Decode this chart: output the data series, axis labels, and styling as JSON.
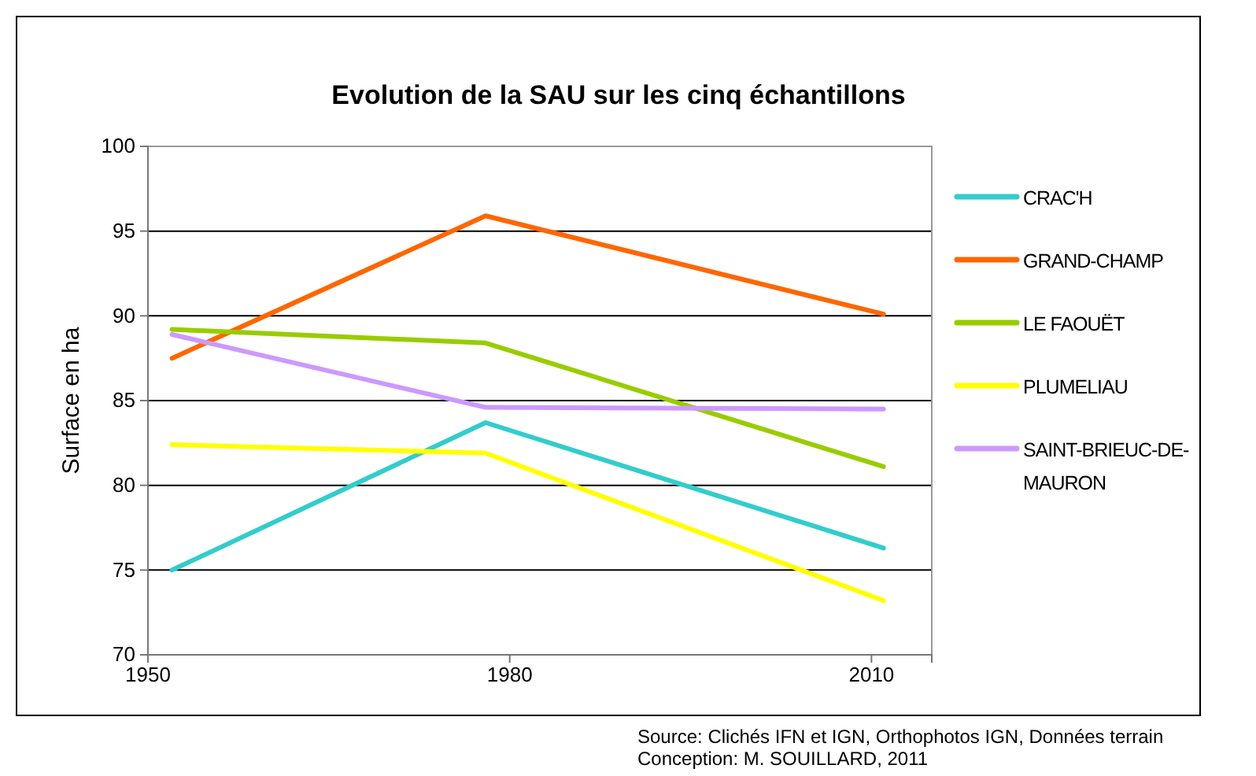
{
  "chart_data": {
    "type": "line",
    "title": "Evolution de la SAU sur les cinq échantillons",
    "ylabel": "Surface en ha",
    "x": [
      1952,
      1978,
      2011
    ],
    "xlim": [
      1950,
      2015
    ],
    "xticks": [
      1950,
      1980,
      2010
    ],
    "ylim": [
      70,
      100
    ],
    "yticks": [
      70,
      75,
      80,
      85,
      90,
      95,
      100
    ],
    "grid": "y",
    "legend": "right",
    "marker": "none",
    "line_style": "solid",
    "series": [
      {
        "name": "CRAC'H",
        "color": "#33cccc",
        "values": [
          75.0,
          83.7,
          76.3
        ]
      },
      {
        "name": "GRAND-CHAMP",
        "color": "#ff6600",
        "values": [
          87.5,
          95.9,
          90.1
        ]
      },
      {
        "name": "LE FAOUËT",
        "color": "#99cc00",
        "values": [
          89.2,
          88.4,
          81.1
        ]
      },
      {
        "name": "PLUMELIAU",
        "color": "#ffff00",
        "values": [
          82.4,
          81.9,
          73.2
        ]
      },
      {
        "name": "SAINT-BRIEUC-DE-MAURON",
        "color": "#cc99ff",
        "values": [
          88.9,
          84.6,
          84.5
        ]
      }
    ],
    "annotations": [
      "Source: Clichés IFN et IGN, Orthophotos IGN, Données terrain",
      "Conception: M. SOUILLARD, 2011"
    ]
  }
}
